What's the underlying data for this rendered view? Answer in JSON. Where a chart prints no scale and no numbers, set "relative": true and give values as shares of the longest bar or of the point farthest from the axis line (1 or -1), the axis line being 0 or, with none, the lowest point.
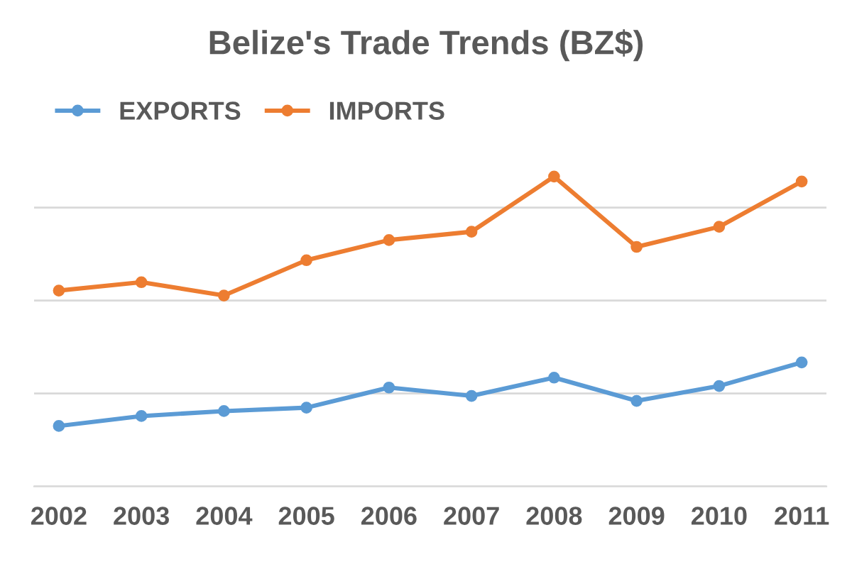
{
  "chart_data": {
    "type": "line",
    "title": "Belize's Trade Trends (BZ$)",
    "relative": true,
    "categories": [
      "2002",
      "2003",
      "2004",
      "2005",
      "2006",
      "2007",
      "2008",
      "2009",
      "2010",
      "2011"
    ],
    "series": [
      {
        "name": "EXPORTS",
        "color": "#5b9bd5",
        "values": [
          0.195,
          0.227,
          0.243,
          0.254,
          0.319,
          0.292,
          0.351,
          0.276,
          0.324,
          0.4
        ]
      },
      {
        "name": "IMPORTS",
        "color": "#ed7d31",
        "values": [
          0.632,
          0.659,
          0.616,
          0.73,
          0.795,
          0.822,
          1,
          0.773,
          0.838,
          0.984
        ]
      }
    ],
    "marker": "circle",
    "line_style": "solid",
    "grid": "y",
    "legend": "top left"
  }
}
